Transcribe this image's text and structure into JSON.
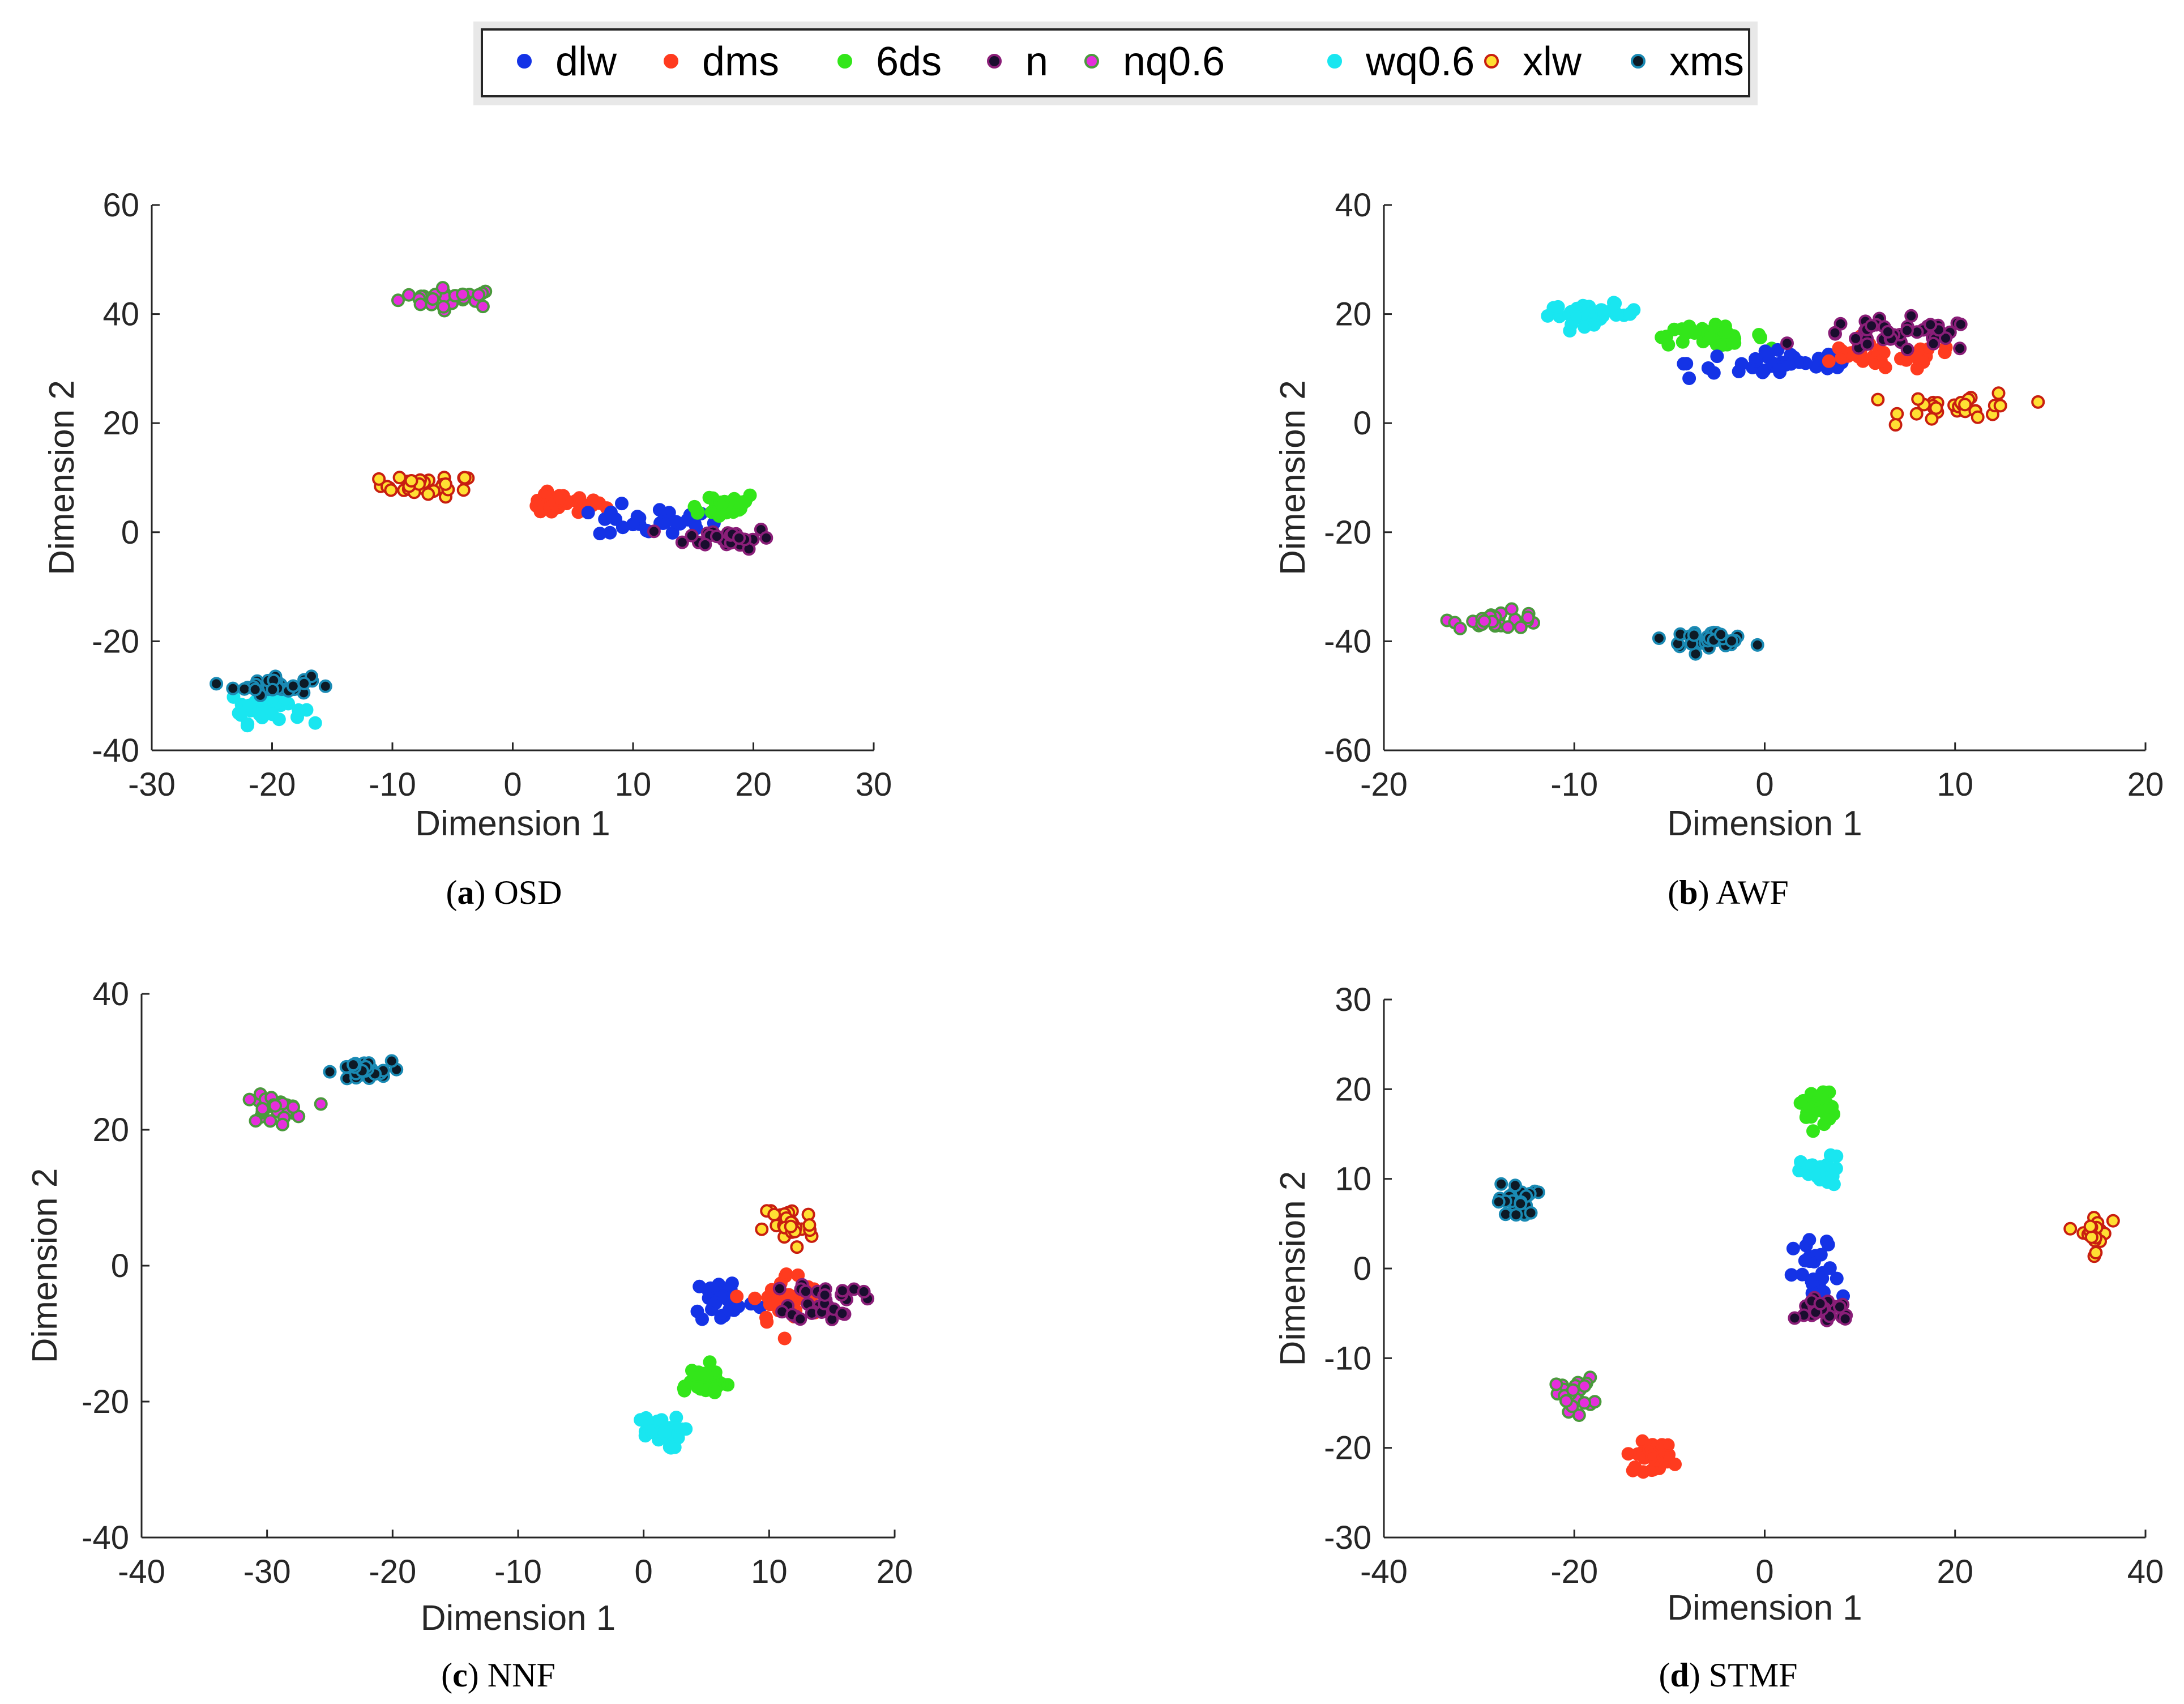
{
  "legend": [
    {
      "key": "dlw",
      "label": "dlw",
      "fill": "#1433e6",
      "edge": "#1433e6"
    },
    {
      "key": "dms",
      "label": "dms",
      "fill": "#ff3b1f",
      "edge": "#ff3b1f"
    },
    {
      "key": "6ds",
      "label": "6ds",
      "fill": "#33e61a",
      "edge": "#33e61a"
    },
    {
      "key": "n",
      "label": "n",
      "fill": "#1a0d2e",
      "edge": "#8a1e78"
    },
    {
      "key": "nq",
      "label": "nq0.6",
      "fill": "#e62edc",
      "edge": "#4a9a3c"
    },
    {
      "key": "wq",
      "label": "wq0.6",
      "fill": "#19e6f0",
      "edge": "#19e6f0"
    },
    {
      "key": "xlw",
      "label": "xlw",
      "fill": "#ffe033",
      "edge": "#c81e10"
    },
    {
      "key": "xms",
      "label": "xms",
      "fill": "#0d1a26",
      "edge": "#1a8ab4"
    }
  ],
  "chart_data": [
    {
      "type": "scatter",
      "caption_letter": "a",
      "caption_text": "OSD",
      "xlabel": "Dimension 1",
      "ylabel": "Dimension 2",
      "xlim": [
        -30,
        30
      ],
      "ylim": [
        -40,
        60
      ],
      "xticks": [
        "-30",
        "-20",
        "-10",
        "0",
        "10",
        "20",
        "30"
      ],
      "yticks": [
        "-40",
        "-20",
        "0",
        "20",
        "40",
        "60"
      ],
      "clusters": [
        {
          "series": "nq",
          "cx": -5,
          "cy": 43,
          "sx": 2.2,
          "sy": 0.9,
          "n": 30
        },
        {
          "series": "xlw",
          "cx": -7,
          "cy": 8.5,
          "sx": 2.0,
          "sy": 1.0,
          "n": 30
        },
        {
          "series": "dms",
          "cx": 4,
          "cy": 5,
          "sx": 1.8,
          "sy": 1.0,
          "n": 35
        },
        {
          "series": "dlw",
          "cx": 12,
          "cy": 2,
          "sx": 2.5,
          "sy": 1.5,
          "n": 30
        },
        {
          "series": "6ds",
          "cx": 17,
          "cy": 5,
          "sx": 1.8,
          "sy": 1.2,
          "n": 25
        },
        {
          "series": "n",
          "cx": 18,
          "cy": -1,
          "sx": 1.8,
          "sy": 1.0,
          "n": 30
        },
        {
          "series": "wq",
          "cx": -20.5,
          "cy": -32,
          "sx": 1.5,
          "sy": 1.5,
          "n": 35
        },
        {
          "series": "xms",
          "cx": -20,
          "cy": -28,
          "sx": 1.6,
          "sy": 0.9,
          "n": 35
        }
      ]
    },
    {
      "type": "scatter",
      "caption_letter": "b",
      "caption_text": "AWF",
      "xlabel": "Dimension 1",
      "ylabel": "Dimension 2",
      "xlim": [
        -20,
        20
      ],
      "ylim": [
        -60,
        40
      ],
      "xticks": [
        "-20",
        "-10",
        "0",
        "10",
        "20"
      ],
      "yticks": [
        "-60",
        "-40",
        "-20",
        "0",
        "20",
        "40"
      ],
      "clusters": [
        {
          "series": "wq",
          "cx": -9,
          "cy": 20,
          "sx": 1.2,
          "sy": 0.9,
          "n": 40
        },
        {
          "series": "6ds",
          "cx": -3,
          "cy": 16,
          "sx": 1.5,
          "sy": 0.9,
          "n": 35
        },
        {
          "series": "dlw",
          "cx": 1,
          "cy": 11,
          "sx": 2.5,
          "sy": 1.5,
          "n": 40
        },
        {
          "series": "dms",
          "cx": 6,
          "cy": 12,
          "sx": 2.2,
          "sy": 1.2,
          "n": 35
        },
        {
          "series": "n",
          "cx": 7,
          "cy": 16,
          "sx": 2.2,
          "sy": 1.5,
          "n": 40
        },
        {
          "series": "xlw",
          "cx": 10.5,
          "cy": 3,
          "sx": 1.6,
          "sy": 1.3,
          "n": 30
        },
        {
          "series": "nq",
          "cx": -14,
          "cy": -36,
          "sx": 1.2,
          "sy": 0.8,
          "n": 30
        },
        {
          "series": "xms",
          "cx": -3,
          "cy": -39.5,
          "sx": 1.1,
          "sy": 0.7,
          "n": 35
        }
      ]
    },
    {
      "type": "scatter",
      "caption_letter": "c",
      "caption_text": "NNF",
      "xlabel": "Dimension 1",
      "ylabel": "Dimension 2",
      "xlim": [
        -40,
        20
      ],
      "ylim": [
        -40,
        40
      ],
      "xticks": [
        "-40",
        "-30",
        "-20",
        "-10",
        "0",
        "10",
        "20"
      ],
      "yticks": [
        "-40",
        "-20",
        "0",
        "20",
        "40"
      ],
      "clusters": [
        {
          "series": "nq",
          "cx": -29.5,
          "cy": 23,
          "sx": 1.2,
          "sy": 1.0,
          "n": 30
        },
        {
          "series": "xms",
          "cx": -22.5,
          "cy": 28.5,
          "sx": 1.2,
          "sy": 0.8,
          "n": 30
        },
        {
          "series": "xlw",
          "cx": 11.5,
          "cy": 6,
          "sx": 1.0,
          "sy": 1.8,
          "n": 30
        },
        {
          "series": "dlw",
          "cx": 6.5,
          "cy": -5,
          "sx": 1.3,
          "sy": 1.8,
          "n": 30
        },
        {
          "series": "dms",
          "cx": 11.5,
          "cy": -5,
          "sx": 1.4,
          "sy": 2.0,
          "n": 35
        },
        {
          "series": "n",
          "cx": 14.5,
          "cy": -5,
          "sx": 1.4,
          "sy": 1.5,
          "n": 35
        },
        {
          "series": "6ds",
          "cx": 4.5,
          "cy": -17,
          "sx": 1.2,
          "sy": 1.2,
          "n": 30
        },
        {
          "series": "wq",
          "cx": 1,
          "cy": -24.5,
          "sx": 1.0,
          "sy": 1.2,
          "n": 30
        }
      ]
    },
    {
      "type": "scatter",
      "caption_letter": "d",
      "caption_text": "STMF",
      "xlabel": "Dimension 1",
      "ylabel": "Dimension 2",
      "xlim": [
        -40,
        40
      ],
      "ylim": [
        -30,
        30
      ],
      "xticks": [
        "-40",
        "-20",
        "0",
        "20",
        "40"
      ],
      "yticks": [
        "-30",
        "-20",
        "-10",
        "0",
        "10",
        "20",
        "30"
      ],
      "clusters": [
        {
          "series": "xms",
          "cx": -26,
          "cy": 7.5,
          "sx": 1.0,
          "sy": 1.0,
          "n": 25
        },
        {
          "series": "6ds",
          "cx": 5.5,
          "cy": 18,
          "sx": 0.9,
          "sy": 1.2,
          "n": 25
        },
        {
          "series": "wq",
          "cx": 6,
          "cy": 10.5,
          "sx": 1.1,
          "sy": 1.0,
          "n": 25
        },
        {
          "series": "dlw",
          "cx": 5.5,
          "cy": -1,
          "sx": 1.2,
          "sy": 2.2,
          "n": 30
        },
        {
          "series": "n",
          "cx": 6.5,
          "cy": -4.5,
          "sx": 1.5,
          "sy": 0.8,
          "n": 30
        },
        {
          "series": "nq",
          "cx": -20,
          "cy": -14,
          "sx": 1.0,
          "sy": 0.9,
          "n": 25
        },
        {
          "series": "dms",
          "cx": -12,
          "cy": -21,
          "sx": 1.2,
          "sy": 0.8,
          "n": 30
        },
        {
          "series": "xlw",
          "cx": 34.5,
          "cy": 4,
          "sx": 0.8,
          "sy": 1.1,
          "n": 25
        }
      ]
    }
  ]
}
